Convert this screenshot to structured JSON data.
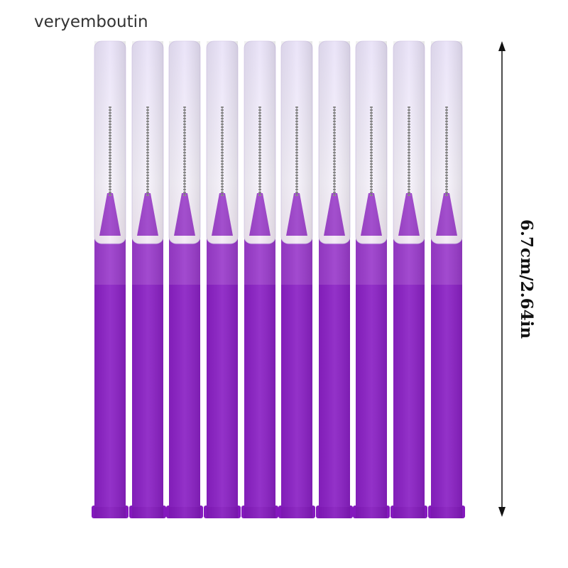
{
  "brand": "veryemboutin",
  "dimension": "6.7cm/2.64in"
}
